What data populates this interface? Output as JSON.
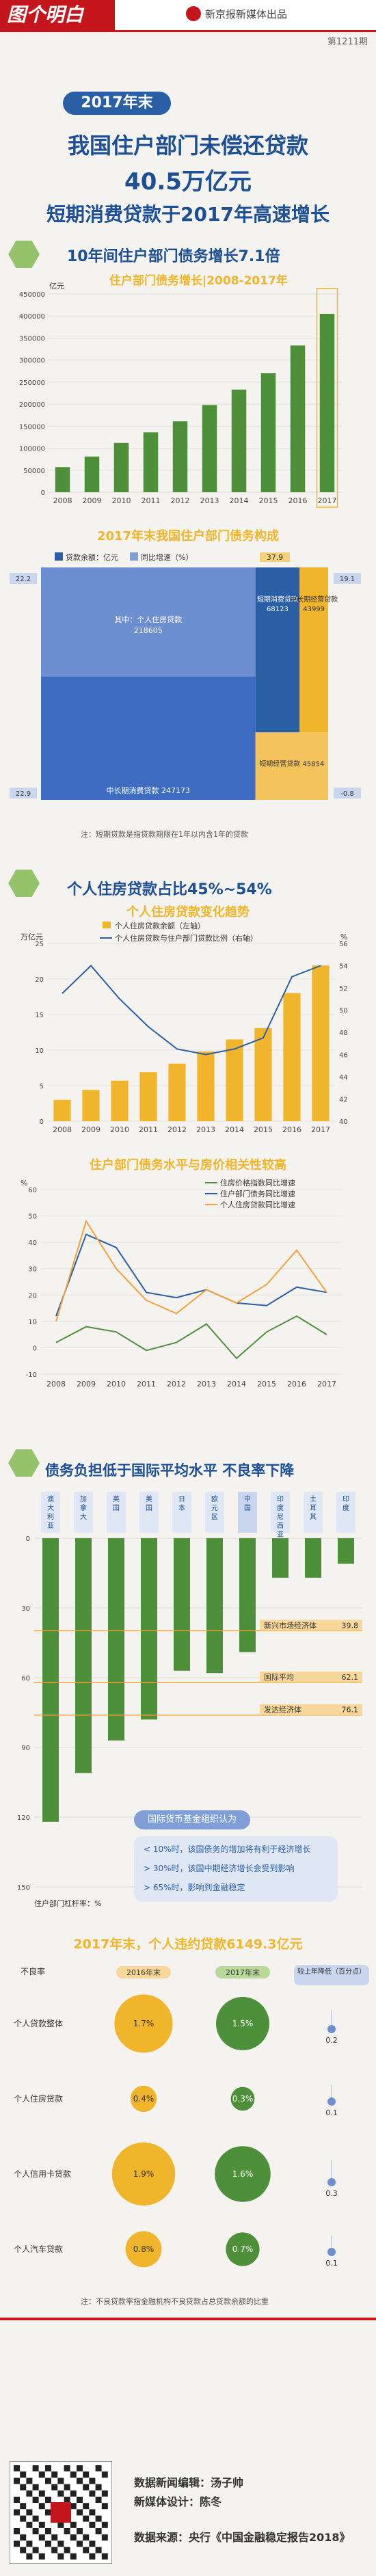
{
  "header": {
    "logo": "图个明白",
    "publisher": "新京报新媒体出品",
    "issue": "第1211期"
  },
  "title": {
    "year_tag": "2017年末",
    "line1": "我国住户部门未偿还贷款",
    "line2": "40.5万亿元",
    "line3": "短期消费贷款于2017年高速增长"
  },
  "section1": {
    "title": "10年间住户部门债务增长7.1倍"
  },
  "colors": {
    "green": "#4e8f3a",
    "gold": "#f0b52a",
    "blue": "#2a5fa6",
    "red": "#c4161c",
    "orange": "#f2a23a"
  },
  "chart_data": [
    {
      "type": "bar",
      "title": "住户部门债务增长|2008-2017年",
      "ylabel": "亿元",
      "categories": [
        "2008",
        "2009",
        "2010",
        "2011",
        "2012",
        "2013",
        "2014",
        "2015",
        "2016",
        "2017"
      ],
      "values": [
        57000,
        81000,
        112000,
        136000,
        161000,
        198000,
        233000,
        270000,
        333000,
        405000
      ],
      "ylim": [
        0,
        450000
      ],
      "yticks": [
        "0",
        "50000",
        "100000",
        "150000",
        "200000",
        "250000",
        "300000",
        "350000",
        "400000",
        "450000"
      ]
    },
    {
      "type": "area",
      "title": "2017年末我国住户部门债务构成",
      "legend": [
        "贷款余额：亿元",
        "同比增速（%）"
      ],
      "blocks": [
        {
          "label": "其中：个人住房贷款",
          "value": 218605
        },
        {
          "label": "中长期消费贷款",
          "value": 247173
        },
        {
          "label": "短期消费贷款",
          "value": 68123
        },
        {
          "label": "中长期经营贷款",
          "value": 43999
        },
        {
          "label": "短期经营贷款",
          "value": 45854
        }
      ],
      "growth_labels": [
        "37.9",
        "22.2",
        "19.1",
        "22.9",
        "-0.8"
      ]
    },
    {
      "type": "bar",
      "title": "个人住房贷款变化趋势",
      "ylabel": "万亿元",
      "legend": [
        "个人住房贷款余额（左轴）",
        "个人住房贷款与住户部门贷款比例（右轴）"
      ],
      "categories": [
        "2008",
        "2009",
        "2010",
        "2011",
        "2012",
        "2013",
        "2014",
        "2015",
        "2016",
        "2017"
      ],
      "series": [
        {
          "name": "个人住房贷款余额（左轴）",
          "values": [
            3.0,
            4.4,
            5.7,
            6.9,
            8.1,
            9.8,
            11.5,
            13.1,
            18.0,
            21.9
          ]
        },
        {
          "name": "个人住房贷款与住户部门贷款比例（右轴）",
          "values": [
            51.5,
            54.0,
            51.0,
            48.5,
            46.5,
            46.0,
            46.5,
            47.5,
            53.0,
            54.0
          ]
        }
      ],
      "ylim": [
        0,
        25
      ],
      "y2lim": [
        40,
        56
      ],
      "yticks": [
        "0",
        "5",
        "10",
        "15",
        "20",
        "25"
      ],
      "y2ticks": [
        "40",
        "42",
        "44",
        "46",
        "48",
        "50",
        "52",
        "54",
        "56"
      ],
      "y2unit": "%"
    },
    {
      "type": "line",
      "title": "住户部门债务水平与房价相关性较高",
      "ylabel": "%",
      "legend": [
        "住房价格指数同比增速",
        "住户部门债务同比增速",
        "个人住房贷款同比增速"
      ],
      "categories": [
        "2008",
        "2009",
        "2010",
        "2011",
        "2012",
        "2013",
        "2014",
        "2015",
        "2016",
        "2017"
      ],
      "series": [
        {
          "name": "住房价格指数同比增速",
          "values": [
            2,
            8,
            6,
            -1,
            2,
            9,
            -4,
            6,
            12,
            5
          ]
        },
        {
          "name": "住户部门债务同比增速",
          "values": [
            12,
            43,
            38,
            21,
            19,
            22,
            17,
            16,
            23,
            21
          ]
        },
        {
          "name": "个人住房贷款同比增速",
          "values": [
            10,
            48,
            30,
            18,
            13,
            22,
            17,
            24,
            37,
            21
          ]
        }
      ],
      "ylim": [
        -10,
        60
      ],
      "yticks": [
        "-10",
        "0",
        "10",
        "20",
        "30",
        "40",
        "50",
        "60"
      ]
    },
    {
      "type": "bar",
      "title": "债务负担低于国际平均水平 不良率下降",
      "ylabel": "住户部门杠杆率：%",
      "categories": [
        "澳大利亚",
        "加拿大",
        "英国",
        "美国",
        "日本",
        "欧元区",
        "中国",
        "印度尼西亚",
        "土耳其",
        "印度"
      ],
      "values": [
        122,
        101,
        87,
        78,
        57,
        58,
        49,
        17,
        17,
        11
      ],
      "ylim": [
        0,
        150
      ],
      "yticks": [
        "0",
        "30",
        "60",
        "90",
        "120",
        "150"
      ],
      "reference_lines": [
        {
          "label": "新兴市场经济体",
          "value": 39.8
        },
        {
          "label": "国际平均",
          "value": 62.1
        },
        {
          "label": "发达经济体",
          "value": 76.1
        }
      ]
    },
    {
      "type": "scatter",
      "title": "2017年末，个人违约贷款6149.3亿元",
      "columns": [
        "不良率",
        "2016年末",
        "2017年末",
        "较上年降低（百分点）"
      ],
      "rows": [
        {
          "label": "个人贷款整体",
          "v2016": "1.7%",
          "v2017": "1.5%",
          "drop": "0.2"
        },
        {
          "label": "个人住房贷款",
          "v2016": "0.4%",
          "v2017": "0.3%",
          "drop": "0.1"
        },
        {
          "label": "个人信用卡贷款",
          "v2016": "1.9%",
          "v2017": "1.6%",
          "drop": "0.3"
        },
        {
          "label": "个人汽车贷款",
          "v2016": "0.8%",
          "v2017": "0.7%",
          "drop": "0.1"
        }
      ]
    }
  ],
  "s1note": "注：短期贷款是指贷款期限在1年以内含1年的贷款",
  "section2": {
    "title": "个人住房贷款占比45%~54%"
  },
  "section3": {
    "title": "债务负担低于国际平均水平 不良率下降"
  },
  "imf": {
    "title": "国际货币基金组织认为",
    "lines": [
      "< 10%时，该国债务的增加将有利于经济增长",
      "> 30%时，该国中期经济增长会受到影响",
      "> 65%时，影响到金融稳定"
    ]
  },
  "npl_note": "注：不良贷款率指金融机构不良贷款占总贷款余额的比重",
  "footer": {
    "editor": "数据新闻编辑：汤子帅",
    "designer": "新媒体设计：陈冬",
    "source": "数据来源：央行《中国金融稳定报告2018》"
  }
}
